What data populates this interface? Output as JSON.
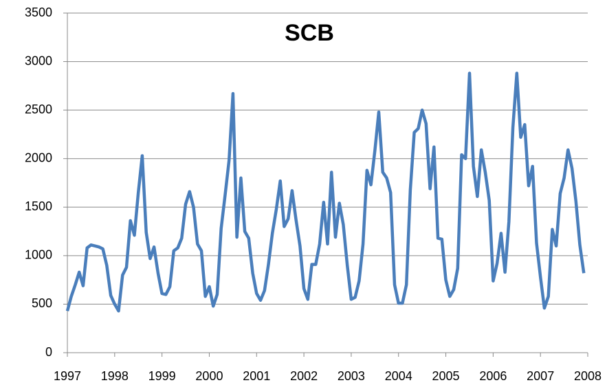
{
  "chart_data": {
    "type": "line",
    "title": "SCB",
    "x": [
      1997,
      1997.083,
      1997.167,
      1997.25,
      1997.333,
      1997.417,
      1997.5,
      1997.583,
      1997.667,
      1997.75,
      1997.833,
      1997.917,
      1998,
      1998.083,
      1998.167,
      1998.25,
      1998.333,
      1998.417,
      1998.5,
      1998.583,
      1998.667,
      1998.75,
      1998.833,
      1998.917,
      1999,
      1999.083,
      1999.167,
      1999.25,
      1999.333,
      1999.417,
      1999.5,
      1999.583,
      1999.667,
      1999.75,
      1999.833,
      1999.917,
      2000,
      2000.083,
      2000.167,
      2000.25,
      2000.333,
      2000.417,
      2000.5,
      2000.583,
      2000.667,
      2000.75,
      2000.833,
      2000.917,
      2001,
      2001.083,
      2001.167,
      2001.25,
      2001.333,
      2001.417,
      2001.5,
      2001.583,
      2001.667,
      2001.75,
      2001.833,
      2001.917,
      2002,
      2002.083,
      2002.167,
      2002.25,
      2002.333,
      2002.417,
      2002.5,
      2002.583,
      2002.667,
      2002.75,
      2002.833,
      2002.917,
      2003,
      2003.083,
      2003.167,
      2003.25,
      2003.333,
      2003.417,
      2003.5,
      2003.583,
      2003.667,
      2003.75,
      2003.833,
      2003.917,
      2004,
      2004.083,
      2004.167,
      2004.25,
      2004.333,
      2004.417,
      2004.5,
      2004.583,
      2004.667,
      2004.75,
      2004.833,
      2004.917,
      2005,
      2005.083,
      2005.167,
      2005.25,
      2005.333,
      2005.417,
      2005.5,
      2005.583,
      2005.667,
      2005.75,
      2005.833,
      2005.917,
      2006,
      2006.083,
      2006.167,
      2006.25,
      2006.333,
      2006.417,
      2006.5,
      2006.583,
      2006.667,
      2006.75,
      2006.833,
      2006.917,
      2007,
      2007.083,
      2007.167,
      2007.25,
      2007.333,
      2007.417,
      2007.5,
      2007.583,
      2007.667,
      2007.75,
      2007.833,
      2007.917
    ],
    "series": [
      {
        "color": "#4a7ebb",
        "values": [
          430,
          580,
          700,
          830,
          690,
          1080,
          1110,
          1100,
          1090,
          1070,
          900,
          590,
          500,
          430,
          800,
          880,
          1360,
          1210,
          1650,
          2030,
          1240,
          970,
          1090,
          820,
          610,
          600,
          680,
          1050,
          1080,
          1180,
          1530,
          1660,
          1500,
          1120,
          1050,
          580,
          680,
          480,
          600,
          1280,
          1620,
          1980,
          2670,
          1190,
          1800,
          1250,
          1180,
          820,
          610,
          540,
          640,
          910,
          1230,
          1480,
          1770,
          1300,
          1380,
          1670,
          1370,
          1100,
          660,
          550,
          910,
          910,
          1120,
          1550,
          1120,
          1860,
          1190,
          1540,
          1320,
          900,
          550,
          570,
          740,
          1120,
          1880,
          1730,
          2080,
          2480,
          1860,
          1800,
          1650,
          700,
          510,
          510,
          700,
          1680,
          2270,
          2310,
          2500,
          2360,
          1690,
          2120,
          1180,
          1170,
          750,
          580,
          650,
          870,
          2040,
          2000,
          2880,
          1920,
          1610,
          2090,
          1860,
          1570,
          740,
          920,
          1230,
          830,
          1350,
          2320,
          2880,
          2220,
          2350,
          1720,
          1920,
          1130,
          780,
          460,
          580,
          1270,
          1100,
          1640,
          1800,
          2090,
          1900,
          1560,
          1110,
          820
        ]
      }
    ],
    "xlim": [
      1997,
      2008
    ],
    "xticks": [
      1997,
      1998,
      1999,
      2000,
      2001,
      2002,
      2003,
      2004,
      2005,
      2006,
      2007,
      2008
    ],
    "ylim": [
      0,
      3500
    ],
    "yticks": [
      0,
      500,
      1000,
      1500,
      2000,
      2500,
      3000,
      3500
    ],
    "grid": true
  }
}
